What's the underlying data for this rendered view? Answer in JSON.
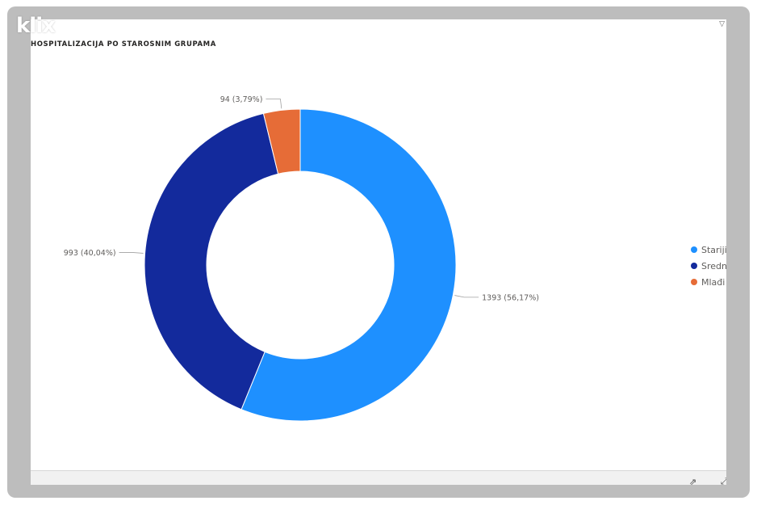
{
  "watermark": "klix",
  "chart_data": {
    "type": "pie",
    "variant": "donut",
    "title": "HOSPITALIZACIJA PO STAROSNIM GRUPAMA",
    "categories": [
      "Stariji",
      "Srednji",
      "Mlađi"
    ],
    "values": [
      1393,
      993,
      94
    ],
    "data_labels": [
      "1393 (56,17%)",
      "993 (40,04%)",
      "94 (3,79%)"
    ],
    "colors": [
      "#1e90ff",
      "#132a9c",
      "#e66c37"
    ],
    "legend": {
      "position": "right",
      "items": [
        "Stariji",
        "Srednji",
        "Mlađi"
      ]
    },
    "start_angle": "top",
    "direction": "clockwise"
  },
  "icons": {
    "filter": "filter-icon",
    "share": "share-icon",
    "expand": "expand-icon"
  }
}
